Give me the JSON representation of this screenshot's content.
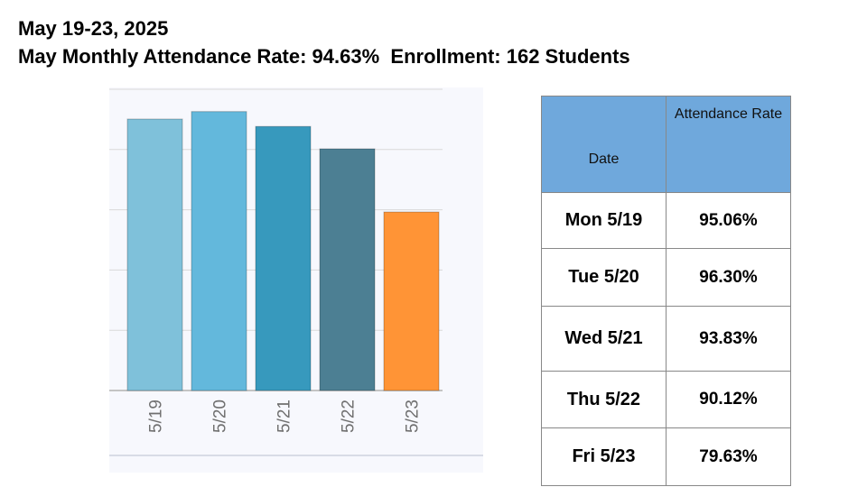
{
  "header": {
    "title_line1": "May 19-23, 2025",
    "title_line2": "May Monthly Attendance Rate: 94.63%  Enrollment: 162 Students"
  },
  "chart_data": {
    "type": "bar",
    "categories": [
      "5/19",
      "5/20",
      "5/21",
      "5/22",
      "5/23"
    ],
    "values": [
      95.06,
      96.3,
      93.83,
      90.12,
      79.63
    ],
    "ylim": [
      50,
      100
    ],
    "grid": true,
    "colors": [
      "#7fc1da",
      "#63b8dc",
      "#3799bd",
      "#4c7f93",
      "#ff9436"
    ],
    "title": "",
    "xlabel": "",
    "ylabel": ""
  },
  "table": {
    "headers": [
      "Date",
      "Attendance Rate"
    ],
    "rows": [
      {
        "date": "Mon 5/19",
        "rate": "95.06%"
      },
      {
        "date": "Tue 5/20",
        "rate": "96.30%"
      },
      {
        "date": "Wed 5/21",
        "rate": "93.83%"
      },
      {
        "date": "Thu 5/22",
        "rate": "90.12%"
      },
      {
        "date": "Fri 5/23",
        "rate": "79.63%"
      }
    ],
    "header_color": "#6fa8dc"
  }
}
